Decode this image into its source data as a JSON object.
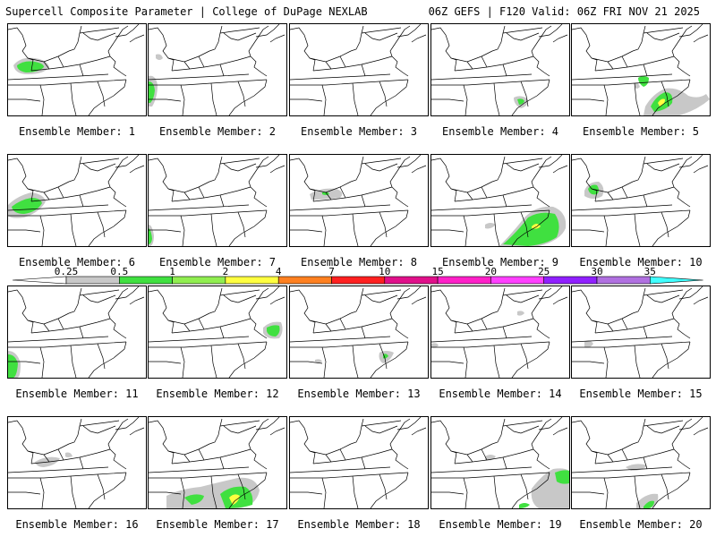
{
  "header": {
    "left": "Supercell Composite Parameter | College of DuPage NEXLAB",
    "right": "06Z GEFS | F120 Valid: 06Z FRI NOV 21 2025"
  },
  "colorbar": {
    "labels": [
      "0.25",
      "0.5",
      "1",
      "2",
      "4",
      "7",
      "10",
      "15",
      "20",
      "25",
      "30",
      "35"
    ],
    "colors": [
      "#c8c8c8",
      "#40e040",
      "#90ee50",
      "#ffff40",
      "#ff8020",
      "#ff2020",
      "#e0108a",
      "#ff20c8",
      "#ff40ff",
      "#9020ff",
      "#b070e0",
      "#40ffff"
    ]
  },
  "legend_colors": {
    "low": "#c8c8c8",
    "mid": "#40e040",
    "high": "#ffff40"
  },
  "members": [
    {
      "label": "Ensemble Member: 1"
    },
    {
      "label": "Ensemble Member: 2"
    },
    {
      "label": "Ensemble Member: 3"
    },
    {
      "label": "Ensemble Member: 4"
    },
    {
      "label": "Ensemble Member: 5"
    },
    {
      "label": "Ensemble Member: 6"
    },
    {
      "label": "Ensemble Member: 7"
    },
    {
      "label": "Ensemble Member: 8"
    },
    {
      "label": "Ensemble Member: 9"
    },
    {
      "label": "Ensemble Member: 10"
    },
    {
      "label": "Ensemble Member: 11"
    },
    {
      "label": "Ensemble Member: 12"
    },
    {
      "label": "Ensemble Member: 13"
    },
    {
      "label": "Ensemble Member: 14"
    },
    {
      "label": "Ensemble Member: 15"
    },
    {
      "label": "Ensemble Member: 16"
    },
    {
      "label": "Ensemble Member: 17"
    },
    {
      "label": "Ensemble Member: 18"
    },
    {
      "label": "Ensemble Member: 19"
    },
    {
      "label": "Ensemble Member: 20"
    }
  ]
}
